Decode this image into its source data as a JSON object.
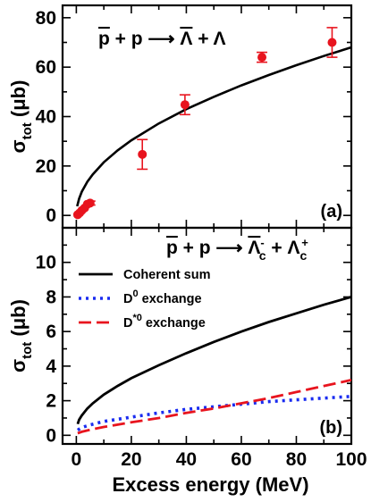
{
  "chart_data": [
    {
      "type": "scatter",
      "panel_tag": "(a)",
      "reaction": {
        "p1": "p",
        "plus1": " + ",
        "p2": "p",
        "arrow": " ⟶ ",
        "l1": "Λ",
        "plus2": " + ",
        "l2": "Λ"
      },
      "ylabel": {
        "sigma": "σ",
        "sub": "tot",
        "unit": " (μb)"
      },
      "xlim": [
        -5,
        100
      ],
      "ylim": [
        -5,
        85
      ],
      "xticks": [
        0,
        20,
        40,
        60,
        80,
        100
      ],
      "yticks": [
        0,
        20,
        40,
        60,
        80
      ],
      "ytick_labels": [
        "0",
        "20",
        "40",
        "60",
        "80"
      ],
      "data_points": [
        {
          "x": 0.5,
          "y": 0.3,
          "err": 0.3
        },
        {
          "x": 1.2,
          "y": 1.0,
          "err": 0.4
        },
        {
          "x": 2.0,
          "y": 2.0,
          "err": 0.5
        },
        {
          "x": 3.0,
          "y": 3.0,
          "err": 0.6
        },
        {
          "x": 4.0,
          "y": 4.5,
          "err": 0.7
        },
        {
          "x": 5.0,
          "y": 5.0,
          "err": 0.8
        },
        {
          "x": 24.0,
          "y": 24.7,
          "err": 6.0
        },
        {
          "x": 39.5,
          "y": 44.8,
          "err": 4.0
        },
        {
          "x": 67.5,
          "y": 64.0,
          "err": 2.0
        },
        {
          "x": 93.0,
          "y": 70.0,
          "err": 6.0
        }
      ],
      "curve": {
        "x": [
          0.3,
          1,
          2,
          4,
          6,
          10,
          15,
          20,
          30,
          40,
          50,
          60,
          70,
          80,
          90,
          100
        ],
        "y": [
          3.7,
          6.8,
          9.6,
          13.6,
          16.6,
          21.5,
          26.3,
          30.4,
          37.2,
          43.0,
          48.0,
          52.6,
          56.8,
          60.8,
          64.5,
          68.0
        ]
      },
      "colors": {
        "points": "#e8141e",
        "curve": "#000000"
      }
    },
    {
      "type": "line",
      "panel_tag": "(b)",
      "reaction": {
        "p1": "p",
        "plus1": " + ",
        "p2": "p",
        "arrow": " ⟶ ",
        "l1": "Λ",
        "l1_sub": "c",
        "l1_sup": "-",
        "plus2": " + ",
        "l2": "Λ",
        "l2_sub": "c",
        "l2_sup": "+"
      },
      "xlabel": "Excess energy (MeV)",
      "ylabel": {
        "sigma": "σ",
        "sub": "tot",
        "unit": " (μb)"
      },
      "xlim": [
        -5,
        100
      ],
      "ylim": [
        -0.5,
        12
      ],
      "xticks": [
        0,
        20,
        40,
        60,
        80,
        100
      ],
      "xtick_labels": [
        "0",
        "20",
        "40",
        "60",
        "80",
        "100"
      ],
      "yticks": [
        0,
        2,
        4,
        6,
        8,
        10
      ],
      "ytick_labels": [
        "0",
        "2",
        "4",
        "6",
        "8",
        "10"
      ],
      "legend_position": "top-left",
      "series": [
        {
          "name": "Coherent sum",
          "color": "#000000",
          "style": "solid",
          "x": [
            0.5,
            1,
            2,
            4,
            6,
            10,
            15,
            20,
            30,
            40,
            50,
            60,
            70,
            80,
            90,
            100
          ],
          "y": [
            0.65,
            0.9,
            1.15,
            1.55,
            1.85,
            2.35,
            2.85,
            3.3,
            4.05,
            4.75,
            5.4,
            6.0,
            6.55,
            7.05,
            7.55,
            8.0
          ]
        },
        {
          "name": "D0 exchange",
          "label_main": "D",
          "label_sup": "0",
          "label_rest": " exchange",
          "color": "#1a2cf0",
          "style": "dotted",
          "x": [
            0.5,
            2,
            5,
            10,
            20,
            30,
            40,
            50,
            60,
            70,
            80,
            90,
            100
          ],
          "y": [
            0.3,
            0.45,
            0.6,
            0.8,
            1.05,
            1.3,
            1.5,
            1.65,
            1.8,
            1.95,
            2.05,
            2.15,
            2.25
          ]
        },
        {
          "name": "D*0 exchange",
          "label_main": "D",
          "label_sup": "*0",
          "label_rest": " exchange",
          "color": "#e8141e",
          "style": "dashed",
          "x": [
            0.5,
            2,
            5,
            10,
            20,
            30,
            40,
            50,
            60,
            70,
            80,
            90,
            100
          ],
          "y": [
            0.12,
            0.2,
            0.32,
            0.48,
            0.75,
            1.0,
            1.3,
            1.55,
            1.85,
            2.15,
            2.5,
            2.85,
            3.2
          ]
        }
      ]
    }
  ]
}
